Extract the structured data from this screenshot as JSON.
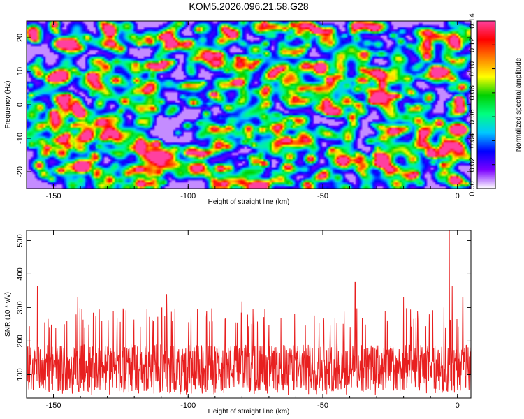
{
  "figure": {
    "title": "KOM5.2026.096.21.58.G28"
  },
  "chart_data": [
    {
      "type": "heatmap",
      "title": "KOM5.2026.096.21.58.G28",
      "xlabel": "Height of straight line (km)",
      "ylabel": "Frequency (Hz)",
      "xlim": [
        -160,
        5
      ],
      "ylim": [
        -25,
        25
      ],
      "xticks": [
        -150,
        -100,
        -50,
        0
      ],
      "yticks": [
        -20,
        -10,
        0,
        10,
        20
      ],
      "colorbar": {
        "label": "Normalized spectral amplitude",
        "range": [
          0,
          0.14
        ],
        "ticks": [
          "0.00",
          "0.02",
          "0.04",
          "0.06",
          "0.08",
          "0.10",
          "0.12",
          "0.14"
        ],
        "colormap": [
          "#ffffff",
          "#7b00ff",
          "#0000ff",
          "#00c8ff",
          "#00ff80",
          "#00d000",
          "#ffff00",
          "#ff8000",
          "#ff0000",
          "#ff40a0"
        ]
      },
      "description_of_values": "dense random speckle field of spectral amplitude mostly 0.02–0.08 with scattered peaks up to ~0.14"
    },
    {
      "type": "line",
      "xlabel": "Height of straight line (km)",
      "ylabel": "SNR (10 * v/v)",
      "xlim": [
        -160,
        5
      ],
      "ylim": [
        30,
        530
      ],
      "xticks": [
        -150,
        -100,
        -50,
        0
      ],
      "yticks": [
        100,
        200,
        300,
        400,
        500
      ],
      "color": "#e82020",
      "baseline_mean": 120,
      "typical_range": [
        50,
        240
      ],
      "peaks": [
        {
          "x": -156,
          "y": 365
        },
        {
          "x": -141,
          "y": 330
        },
        {
          "x": -108,
          "y": 340
        },
        {
          "x": -80,
          "y": 318
        },
        {
          "x": -38,
          "y": 375
        },
        {
          "x": -20,
          "y": 330
        },
        {
          "x": -5,
          "y": 300
        },
        {
          "x": -3,
          "y": 530
        },
        {
          "x": -2,
          "y": 365
        },
        {
          "x": 2,
          "y": 330
        }
      ]
    }
  ]
}
